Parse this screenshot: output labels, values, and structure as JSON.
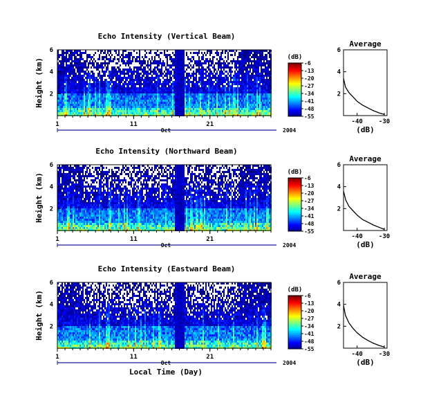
{
  "chart_data": [
    {
      "type": "heatmap",
      "title": "Echo Intensity (Vertical Beam)",
      "ylabel": "Height (km)",
      "yticks": [
        "6",
        "4",
        "2"
      ],
      "ylim": [
        0,
        6
      ],
      "xticks": [
        "1",
        "11",
        "21"
      ],
      "xlim": [
        1,
        29
      ],
      "month_label": "Oct",
      "year_label": "2004",
      "colorbar": {
        "label": "(dB)",
        "ticks": [
          "-6",
          "-13",
          "-20",
          "-27",
          "-34",
          "-41",
          "-48",
          "-55"
        ],
        "range": [
          -55,
          -6
        ]
      },
      "profile": {
        "title": "Average",
        "xlabel": "(dB)",
        "xticks": [
          "-40",
          "-30"
        ],
        "yticks": [
          "6",
          "4",
          "2"
        ],
        "xlim": [
          -45,
          -29
        ],
        "ylim": [
          0,
          6
        ],
        "x": [
          -45.0,
          -44.3,
          -43.0,
          -41.5,
          -40.0,
          -38.0,
          -36.0,
          -34.0,
          -32.0,
          -30.0
        ],
        "y": [
          3.4,
          2.6,
          2.1,
          1.7,
          1.3,
          0.95,
          0.7,
          0.45,
          0.25,
          0.1
        ]
      }
    },
    {
      "type": "heatmap",
      "title": "Echo Intensity (Northward Beam)",
      "ylabel": "Height (km)",
      "yticks": [
        "6",
        "4",
        "2"
      ],
      "ylim": [
        0,
        6
      ],
      "xticks": [
        "1",
        "11",
        "21"
      ],
      "xlim": [
        1,
        29
      ],
      "month_label": "Oct",
      "year_label": "2004",
      "colorbar": {
        "label": "(dB)",
        "ticks": [
          "-6",
          "-13",
          "-20",
          "-27",
          "-34",
          "-41",
          "-48",
          "-55"
        ],
        "range": [
          -55,
          -6
        ]
      },
      "profile": {
        "title": "Average",
        "xlabel": "(dB)",
        "xticks": [
          "-40",
          "-30"
        ],
        "yticks": [
          "6",
          "4",
          "2"
        ],
        "xlim": [
          -45,
          -29
        ],
        "ylim": [
          0,
          6
        ],
        "x": [
          -45.0,
          -44.2,
          -43.0,
          -41.5,
          -40.0,
          -38.0,
          -36.0,
          -34.0,
          -32.0,
          -30.0
        ],
        "y": [
          3.6,
          2.8,
          2.2,
          1.8,
          1.4,
          1.0,
          0.75,
          0.5,
          0.3,
          0.1
        ]
      }
    },
    {
      "type": "heatmap",
      "title": "Echo Intensity (Eastward Beam)",
      "ylabel": "Height (km)",
      "yticks": [
        "6",
        "4",
        "2"
      ],
      "ylim": [
        0,
        6
      ],
      "xticks": [
        "1",
        "11",
        "21"
      ],
      "xlim": [
        1,
        29
      ],
      "month_label": "Oct",
      "year_label": "2004",
      "xlabel": "Local Time (Day)",
      "colorbar": {
        "label": "(dB)",
        "ticks": [
          "-6",
          "-13",
          "-20",
          "-27",
          "-34",
          "-41",
          "-48",
          "-55"
        ],
        "range": [
          -55,
          -6
        ]
      },
      "profile": {
        "title": "Average",
        "xlabel": "(dB)",
        "xticks": [
          "-40",
          "-30"
        ],
        "yticks": [
          "6",
          "4",
          "2"
        ],
        "xlim": [
          -45,
          -29
        ],
        "ylim": [
          0,
          6
        ],
        "x": [
          -45.0,
          -44.3,
          -43.0,
          -41.5,
          -40.0,
          -38.0,
          -36.0,
          -34.0,
          -32.0,
          -30.0
        ],
        "y": [
          3.9,
          3.0,
          2.3,
          1.8,
          1.4,
          1.0,
          0.7,
          0.45,
          0.25,
          0.1
        ]
      }
    }
  ]
}
